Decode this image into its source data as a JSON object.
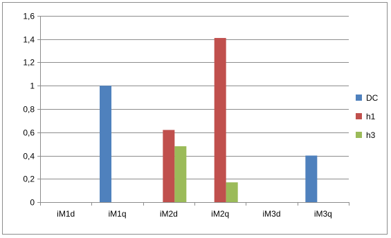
{
  "chart_data": {
    "type": "bar",
    "categories": [
      "iM1d",
      "iM1q",
      "iM2d",
      "iM2q",
      "iM3d",
      "iM3q"
    ],
    "series": [
      {
        "name": "DC",
        "color": "#4f81bd",
        "values": [
          0,
          1.0,
          0,
          0,
          0,
          0.4
        ]
      },
      {
        "name": "h1",
        "color": "#c0504d",
        "values": [
          0,
          0,
          0.62,
          1.41,
          0,
          0
        ]
      },
      {
        "name": "h3",
        "color": "#9bbb59",
        "values": [
          0,
          0,
          0.48,
          0.17,
          0,
          0
        ]
      }
    ],
    "y_ticks": [
      "0",
      "0,2",
      "0,4",
      "0,6",
      "0,8",
      "1",
      "1,2",
      "1,4",
      "1,6"
    ],
    "ylim": [
      0,
      1.6
    ],
    "y_tick_step": 0.2,
    "grid": "horizontal",
    "legend_position": "right",
    "title": "",
    "xlabel": "",
    "ylabel": ""
  }
}
